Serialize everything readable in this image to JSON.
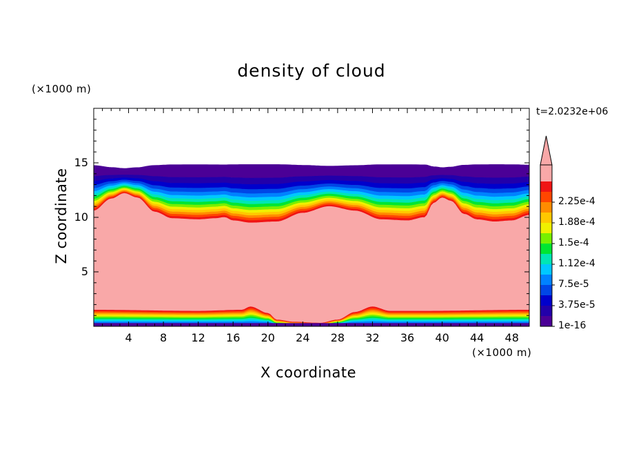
{
  "chart_data": {
    "type": "heatmap",
    "title": "density of cloud",
    "xlabel": "X coordinate",
    "ylabel": "Z coordinate",
    "x_unit": "(×1000 m)",
    "y_unit": "(×1000 m)",
    "time_label": "t=2.0232e+06",
    "xlim": [
      0,
      50
    ],
    "ylim": [
      0,
      20
    ],
    "x_ticks": [
      "4",
      "8",
      "12",
      "16",
      "20",
      "24",
      "28",
      "32",
      "36",
      "40",
      "44",
      "48"
    ],
    "y_ticks": [
      "5",
      "10",
      "15"
    ],
    "colorbar": {
      "labels": [
        "2.25e-4",
        "1.88e-4",
        "1.5e-4",
        "1.12e-4",
        "7.5e-5",
        "3.75e-5",
        "1e-16"
      ],
      "levels": [
        1e-16,
        1.875e-05,
        3.75e-05,
        5.625e-05,
        7.5e-05,
        9.375e-05,
        0.0001125,
        0.00013125,
        0.00015,
        0.00016875,
        0.0001875,
        0.00020625,
        0.000225,
        0.00024375
      ],
      "colors": [
        "#4b0096",
        "#2200aa",
        "#0000cc",
        "#0046e6",
        "#0082ff",
        "#00c8ff",
        "#00e6b4",
        "#00e632",
        "#78f000",
        "#f0f000",
        "#ffc800",
        "#ff8c00",
        "#ff4600",
        "#f01414"
      ],
      "over_color": "#f9a8a8"
    },
    "field": {
      "cloud_top_km": 14.85,
      "cloud_layer_top_km": [
        [
          0,
          10.6
        ],
        [
          2,
          11.7
        ],
        [
          3.5,
          12.2
        ],
        [
          5,
          11.8
        ],
        [
          7,
          10.5
        ],
        [
          9,
          9.9
        ],
        [
          12,
          9.8
        ],
        [
          14,
          9.9
        ],
        [
          15,
          10.0
        ],
        [
          16,
          9.7
        ],
        [
          18,
          9.5
        ],
        [
          21,
          9.6
        ],
        [
          24,
          10.4
        ],
        [
          27,
          11.0
        ],
        [
          30,
          10.6
        ],
        [
          33,
          9.8
        ],
        [
          36,
          9.7
        ],
        [
          38,
          10.0
        ],
        [
          39,
          11.3
        ],
        [
          40,
          11.8
        ],
        [
          41,
          11.5
        ],
        [
          42.5,
          10.3
        ],
        [
          44,
          9.8
        ],
        [
          46,
          9.6
        ],
        [
          48,
          9.7
        ],
        [
          50,
          10.2
        ]
      ],
      "lower_edge_km": [
        [
          0,
          1.5
        ],
        [
          12,
          1.4
        ],
        [
          17,
          1.5
        ],
        [
          18,
          1.8
        ],
        [
          20,
          1.2
        ],
        [
          21,
          0.6
        ],
        [
          23,
          0.4
        ],
        [
          26,
          0.3
        ],
        [
          28,
          0.6
        ],
        [
          30,
          1.3
        ],
        [
          32,
          1.8
        ],
        [
          34,
          1.4
        ],
        [
          38,
          1.4
        ],
        [
          50,
          1.5
        ]
      ],
      "ground_km": [
        [
          0,
          0.3
        ],
        [
          20,
          0.3
        ],
        [
          21,
          0.1
        ],
        [
          23,
          0.05
        ],
        [
          27,
          0.05
        ],
        [
          28,
          0.2
        ],
        [
          30,
          0.3
        ],
        [
          50,
          0.3
        ]
      ]
    }
  }
}
